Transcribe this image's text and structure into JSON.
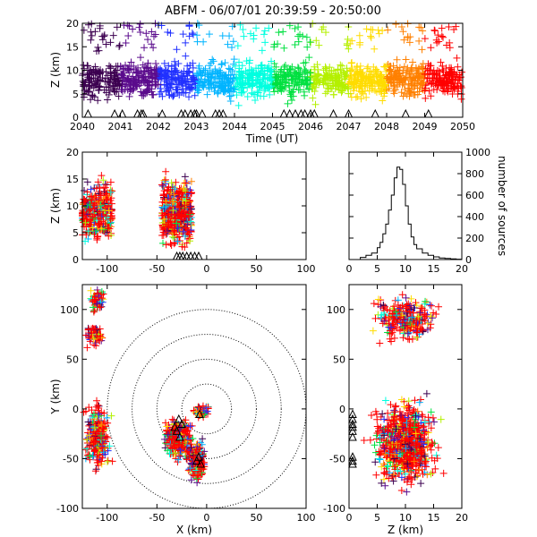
{
  "title": "ABFM - 06/07/01 20:39:59 - 20:50:00",
  "chart_data": [
    {
      "id": "time_height",
      "type": "scatter",
      "xlabel": "Time (UT)",
      "ylabel": "Z (km)",
      "xlim": [
        2040,
        2050
      ],
      "ylim": [
        0,
        20
      ],
      "xticks": [
        "2040",
        "2041",
        "2042",
        "2043",
        "2044",
        "2045",
        "2046",
        "2047",
        "2048",
        "2049",
        "2050"
      ],
      "yticks": [
        "0",
        "5",
        "10",
        "15",
        "20"
      ],
      "marker": "+",
      "color_encoding": "time",
      "colormap": [
        "#3c0050",
        "#5a0a8c",
        "#2030ff",
        "#00b4ff",
        "#00ffe0",
        "#00e040",
        "#b4f000",
        "#ffdc00",
        "#ff8000",
        "#ff0000"
      ],
      "stations_marker": "triangle",
      "station_times": [
        2040.15,
        2040.85,
        2041.05,
        2041.45,
        2041.55,
        2041.6,
        2042.1,
        2042.6,
        2042.7,
        2042.85,
        2042.95,
        2043.0,
        2043.15,
        2043.5,
        2043.6,
        2043.7,
        2045.3,
        2045.45,
        2045.6,
        2045.75,
        2045.85,
        2046.0,
        2046.1,
        2046.6,
        2047.0,
        2047.7,
        2048.5,
        2049.1
      ]
    },
    {
      "id": "x_height",
      "type": "scatter",
      "xlabel": "",
      "ylabel": "Z (km)",
      "xlim": [
        -125,
        100
      ],
      "ylim": [
        0,
        20
      ],
      "xticks": [
        "-100",
        "-50",
        "0",
        "50",
        "100"
      ],
      "yticks": [
        "0",
        "5",
        "10",
        "15",
        "20"
      ],
      "marker": "+",
      "clusters": [
        {
          "x": [
            -125,
            -95
          ],
          "z": [
            2,
            16
          ],
          "weight": 0.35
        },
        {
          "x": [
            -45,
            -15
          ],
          "z": [
            1,
            17
          ],
          "weight": 0.5
        }
      ]
    },
    {
      "id": "altitude_histogram",
      "type": "line",
      "xlabel": "",
      "ylabel": "number of sources",
      "xlim": [
        0,
        20
      ],
      "ylim": [
        0,
        1000
      ],
      "xticks": [
        "0",
        "5",
        "10",
        "15",
        "20"
      ],
      "yticks": [
        "0",
        "200",
        "400",
        "600",
        "800",
        "1000"
      ],
      "x": [
        1,
        2,
        3,
        4,
        5,
        5.5,
        6,
        6.5,
        7,
        7.5,
        8,
        8.5,
        9,
        9.5,
        10,
        10.5,
        11,
        11.5,
        12,
        13,
        14,
        15,
        16,
        17,
        18,
        19,
        20
      ],
      "values": [
        0,
        20,
        40,
        60,
        110,
        160,
        240,
        330,
        460,
        600,
        760,
        860,
        840,
        700,
        500,
        330,
        210,
        140,
        100,
        60,
        40,
        25,
        15,
        10,
        6,
        3,
        0
      ]
    },
    {
      "id": "plan_view",
      "type": "scatter",
      "xlabel": "X (km)",
      "ylabel": "Y (km)",
      "xlim": [
        -125,
        100
      ],
      "ylim": [
        -100,
        125
      ],
      "xticks": [
        "-100",
        "-50",
        "0",
        "50",
        "100"
      ],
      "yticks": [
        "-100",
        "-50",
        "0",
        "50",
        "100"
      ],
      "marker": "+",
      "ring_radii_km": [
        25,
        50,
        75,
        100
      ],
      "station_points": [
        [
          -28,
          -10
        ],
        [
          -25,
          -15
        ],
        [
          -30,
          -22
        ],
        [
          -27,
          -28
        ],
        [
          -32,
          -18
        ],
        [
          -8,
          -48
        ],
        [
          -6,
          -55
        ],
        [
          -10,
          -52
        ],
        [
          -7,
          -5
        ]
      ],
      "clusters": [
        {
          "x": [
            -120,
            -100
          ],
          "y": [
            95,
            125
          ],
          "weight": 0.06
        },
        {
          "x": [
            -125,
            -100
          ],
          "y": [
            60,
            90
          ],
          "weight": 0.06
        },
        {
          "x": [
            -125,
            -95
          ],
          "y": [
            -70,
            15
          ],
          "weight": 0.22
        },
        {
          "x": [
            -45,
            -10
          ],
          "y": [
            -55,
            -5
          ],
          "weight": 0.3
        },
        {
          "x": [
            -20,
            0
          ],
          "y": [
            -75,
            -30
          ],
          "weight": 0.2
        },
        {
          "x": [
            -15,
            5
          ],
          "y": [
            -10,
            5
          ],
          "weight": 0.05
        }
      ]
    },
    {
      "id": "height_y",
      "type": "scatter",
      "xlabel": "Z (km)",
      "ylabel": "",
      "xlim": [
        0,
        20
      ],
      "ylim": [
        -100,
        125
      ],
      "xticks": [
        "0",
        "5",
        "10",
        "15",
        "20"
      ],
      "yticks": [
        "-100",
        "-50",
        "0",
        "50",
        "100"
      ],
      "marker": "+",
      "clusters": [
        {
          "z": [
            1,
            19
          ],
          "y": [
            60,
            125
          ],
          "weight": 0.25
        },
        {
          "z": [
            2,
            18
          ],
          "y": [
            -90,
            20
          ],
          "weight": 0.75
        }
      ]
    }
  ]
}
